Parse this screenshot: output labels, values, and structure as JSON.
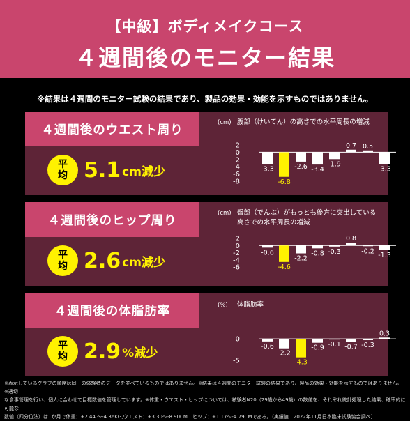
{
  "header": {
    "subtitle": "【中級】ボディメイクコース",
    "title": "４週間後のモニター結果"
  },
  "disclaimer": "※結果は４週間のモニター試験の結果であり、製品の効果・効能を示すものではありません。",
  "colors": {
    "accent_pink": "#c9456d",
    "panel_maroon": "#5e2437",
    "highlight_yellow": "#fff200",
    "bar_white": "#ffffff"
  },
  "panels": [
    {
      "title": "４週間後のウエスト周り",
      "badge": [
        "平",
        "均"
      ],
      "result_value": "5.1",
      "result_unit": "cm減少",
      "chart_unit": "(cm)",
      "chart_title": [
        "腹部（けいてん）の高さでの水平周長の増減"
      ]
    },
    {
      "title": "４週間後のヒップ周り",
      "badge": [
        "平",
        "均"
      ],
      "result_value": "2.6",
      "result_unit": "cm減少",
      "chart_unit": "(cm)",
      "chart_title": [
        "臀部（でんぶ）がもっとも後方に突出している",
        "高さでの水平周長の増減"
      ]
    },
    {
      "title": "４週間後の体脂肪率",
      "badge": [
        "平",
        "均"
      ],
      "result_value": "2.9",
      "result_unit": "%減少",
      "chart_unit": "(%)",
      "chart_title": [
        "体脂肪率"
      ]
    }
  ],
  "chart_data": [
    {
      "type": "bar",
      "title": "腹部（けいてん）の高さでの水平周長の増減",
      "ylabel": "(cm)",
      "yticks": [
        2,
        0,
        -2,
        -4,
        -6,
        -8
      ],
      "ylim": [
        -8,
        2
      ],
      "values": [
        -3.3,
        -6.8,
        -2.6,
        -3.4,
        -1.9,
        0.7,
        0.5,
        -3.3
      ],
      "labels": [
        "-3.3",
        "-6.8",
        "-2.6",
        "-3.4",
        "-1.9",
        "0.7",
        "0.5",
        "-3.3"
      ],
      "highlight_index": 1
    },
    {
      "type": "bar",
      "title": "臀部（でんぶ）がもっとも後方に突出している高さでの水平周長の増減",
      "ylabel": "(cm)",
      "yticks": [
        2,
        0,
        -2,
        -4,
        -6
      ],
      "ylim": [
        -6,
        2
      ],
      "values": [
        -0.6,
        -4.6,
        -2.2,
        -0.8,
        -0.3,
        0.8,
        -0.2,
        -1.3
      ],
      "labels": [
        "-0.6",
        "-4.6",
        "-2.2",
        "-0.8",
        "-0.3",
        "0.8",
        "-0.2",
        "-1.3"
      ],
      "highlight_index": 1
    },
    {
      "type": "bar",
      "title": "体脂肪率",
      "ylabel": "(%)",
      "yticks": [
        0,
        -5
      ],
      "ylim": [
        -5,
        1
      ],
      "values": [
        -0.6,
        -2.2,
        -4.3,
        -0.9,
        -0.1,
        -0.7,
        -0.3,
        0.3
      ],
      "labels": [
        "-0.6",
        "-2.2",
        "-4.3",
        "-0.9",
        "-0.1",
        "-0.7",
        "-0.3",
        "0.3"
      ],
      "highlight_index": 2
    }
  ],
  "footnote": [
    "※表示しているグラフの順序は同一の体験者のデータを並べているものではありません。※結果は４週間のモニター試験の結果であり、製品の効果・効能を示すものではありません。※適切",
    "な食事管理を行い、個人に合わせて目標数値を管理しています。※体重・ウエスト・ヒップについては、被験者N20（29歳から49歳）の数値を、それぞれ統計処理した結果、確率的に可能な",
    "数値（四分位法）は1か月で体重：+2.44 〜-4.36KG,ウエスト：+3.30〜-8.90CM　ヒップ：+1.17〜-4.79CMである。（実績値　2022年11月日本臨床試験協会調べ）"
  ]
}
